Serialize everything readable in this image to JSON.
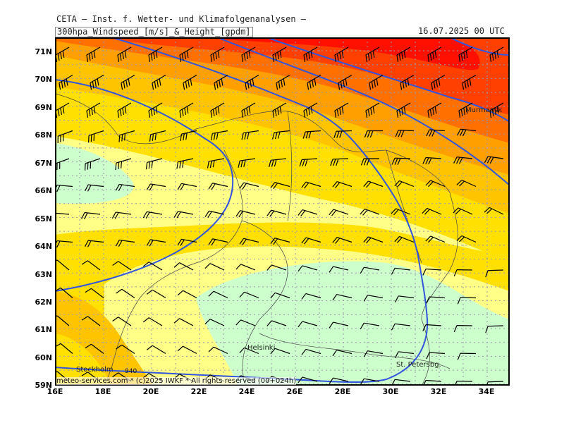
{
  "header": {
    "title": "CETA – Inst. f. Wetter- und Klimafolgenanalysen –",
    "field": "300hpa_Windspeed_[m/s]_&_Height_[gpdm]",
    "valid_time": "16.07.2025 00 UTC"
  },
  "lat_labels": [
    "71N",
    "70N",
    "69N",
    "68N",
    "67N",
    "66N",
    "65N",
    "64N",
    "63N",
    "62N",
    "61N",
    "60N",
    "59N"
  ],
  "lon_labels": [
    "16E",
    "18E",
    "20E",
    "22E",
    "24E",
    "26E",
    "28E",
    "30E",
    "32E",
    "34E"
  ],
  "cities": {
    "murmansk": "Murmansk",
    "helsinki": "Helsinki",
    "stockholm": "Stockholm",
    "st_petersburg": "St. Petersbg."
  },
  "contour_label": "940",
  "credit": "meteo-services.com * (c)2025 IWKF * All rights reserved (00+024h)",
  "colors": {
    "calm": "#ccffcc",
    "light_yellow": "#ffff88",
    "yellow": "#ffe000",
    "gold": "#ffc400",
    "orange": "#ffa000",
    "dark_orange": "#ff7000",
    "red_orange": "#ff4000",
    "red": "#ff1000",
    "contour": "#3355dd",
    "grid": "#9999aa"
  }
}
